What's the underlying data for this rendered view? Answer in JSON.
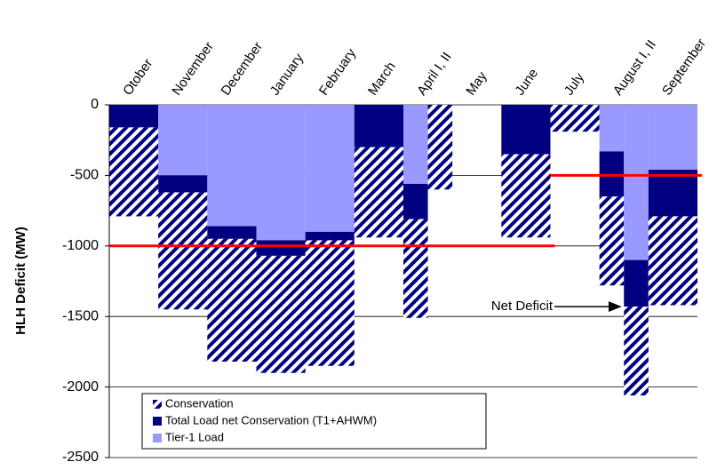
{
  "chart_data": {
    "type": "bar",
    "stacked": true,
    "y_label": "HLH Deficit (MW)",
    "categories": [
      "Otober",
      "November",
      "December",
      "January",
      "February",
      "March",
      "April I, II",
      null,
      "May",
      "June",
      "July",
      "August I, II",
      null,
      "September"
    ],
    "series": [
      {
        "name": "Conservation",
        "color": "#000080",
        "pattern": "hatch",
        "values": [
          -630,
          -830,
          -870,
          -830,
          -890,
          -640,
          -700,
          -600,
          0,
          -590,
          -190,
          -630,
          -630,
          -630
        ]
      },
      {
        "name": "Total Load net Conservation (T1+AHWM)",
        "color": "#000080",
        "values": [
          -160,
          -120,
          -90,
          -110,
          -60,
          -300,
          -250,
          0,
          0,
          -350,
          0,
          -320,
          -330,
          -330
        ]
      },
      {
        "name": "Tier-1 Load",
        "color": "#9999ff",
        "values": [
          0,
          -500,
          -860,
          -960,
          -900,
          0,
          -560,
          0,
          0,
          0,
          0,
          -330,
          -1100,
          -460
        ]
      }
    ],
    "reference_lines": [
      {
        "value": -1000,
        "from": "Otober",
        "to": "June",
        "color": "#ff0000"
      },
      {
        "value": -500,
        "from": "July",
        "to": "September",
        "color": "#ff0000"
      }
    ],
    "annotation": {
      "text": "Net Deficit",
      "category": "August I, II",
      "y": -1430
    },
    "ylim": [
      -2500,
      0
    ],
    "yticks": [
      -2500,
      -2000,
      -1500,
      -1000,
      -500,
      0
    ],
    "grid": true
  }
}
